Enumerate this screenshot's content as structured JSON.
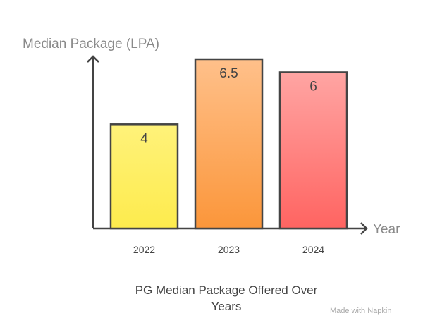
{
  "chart_data": {
    "type": "bar",
    "title": "PG Median Package Offered Over Years",
    "title_lines": [
      "PG Median Package Offered Over",
      "Years"
    ],
    "xlabel": "Year",
    "ylabel": "Median Package (LPA)",
    "categories": [
      "2022",
      "2023",
      "2024"
    ],
    "values": [
      4,
      6.5,
      6
    ],
    "value_labels": [
      "4",
      "6.5",
      "6"
    ],
    "ylim": [
      0,
      6.5
    ],
    "grid": false,
    "colors": [
      [
        "#fff27a",
        "#fdeb4d"
      ],
      [
        "#ffc08a",
        "#fb963a"
      ],
      [
        "#ffa5a3",
        "#ff6461"
      ]
    ]
  },
  "watermark": "Made with Napkin"
}
